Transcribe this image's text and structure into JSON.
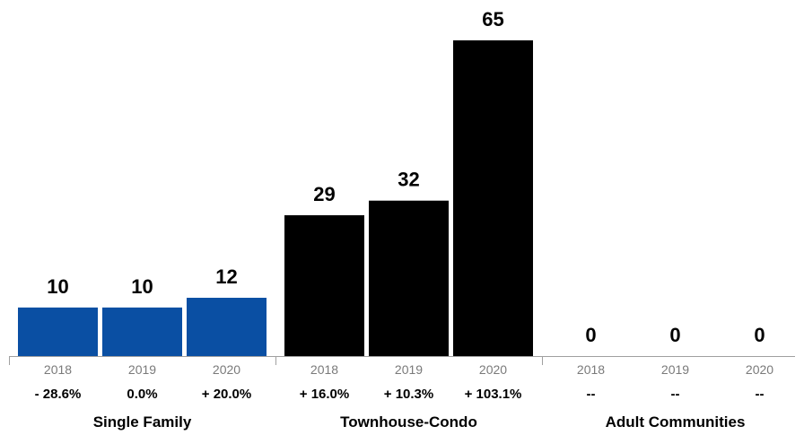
{
  "chart_data": {
    "type": "bar",
    "title": "",
    "xlabel": "",
    "ylabel": "",
    "ylim": [
      0,
      65
    ],
    "grid": false,
    "legend": "none",
    "groups": [
      {
        "name": "Single Family",
        "color": "#0a4fa3",
        "bars": [
          {
            "year": "2018",
            "value": 10,
            "value_label": "10",
            "change": "- 28.6%"
          },
          {
            "year": "2019",
            "value": 10,
            "value_label": "10",
            "change": "0.0%"
          },
          {
            "year": "2020",
            "value": 12,
            "value_label": "12",
            "change": "+ 20.0%"
          }
        ]
      },
      {
        "name": "Townhouse-Condo",
        "color": "#000000",
        "bars": [
          {
            "year": "2018",
            "value": 29,
            "value_label": "29",
            "change": "+ 16.0%"
          },
          {
            "year": "2019",
            "value": 32,
            "value_label": "32",
            "change": "+ 10.3%"
          },
          {
            "year": "2020",
            "value": 65,
            "value_label": "65",
            "change": "+ 103.1%"
          }
        ]
      },
      {
        "name": "Adult Communities",
        "color": "#000000",
        "bars": [
          {
            "year": "2018",
            "value": 0,
            "value_label": "0",
            "change": "--"
          },
          {
            "year": "2019",
            "value": 0,
            "value_label": "0",
            "change": "--"
          },
          {
            "year": "2020",
            "value": 0,
            "value_label": "0",
            "change": "--"
          }
        ]
      }
    ]
  }
}
